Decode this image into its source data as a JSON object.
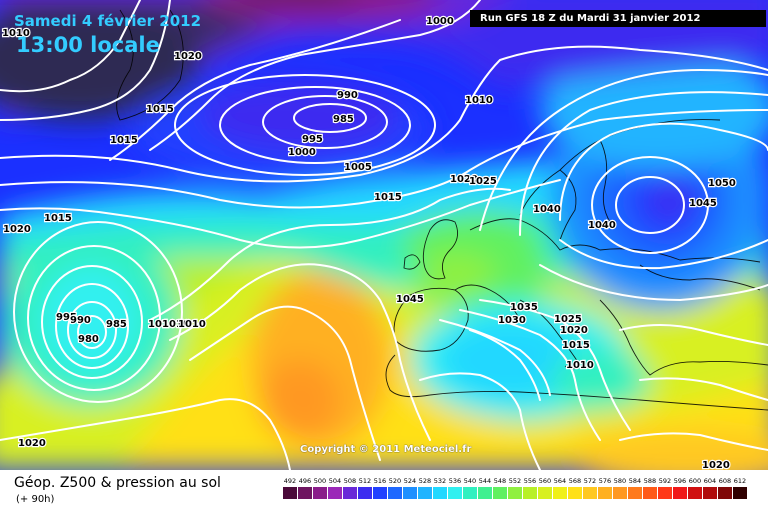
{
  "map": {
    "date_title": "Samedi 4 février 2012",
    "time_title": "13:00 locale",
    "run_label": "Run GFS 18 Z du Mardi 31 janvier 2012",
    "copyright": "Copyright © 2011 Meteociel.fr",
    "parameter_label": "Géop. Z500 & pression au sol",
    "lead_time_label": "(+ 90h)",
    "isobar_labels": [
      {
        "text": "1010",
        "pos": "top-left edge"
      },
      {
        "text": "1000",
        "pos": "top center"
      },
      {
        "text": "1020",
        "pos": "top left"
      },
      {
        "text": "990",
        "pos": "north atlantic low"
      },
      {
        "text": "985",
        "pos": "north atlantic low center"
      },
      {
        "text": "995",
        "pos": "north atlantic low"
      },
      {
        "text": "1000",
        "pos": "north atlantic low"
      },
      {
        "text": "1015",
        "pos": "greenland"
      },
      {
        "text": "1015",
        "pos": "left edge"
      },
      {
        "text": "1010",
        "pos": "north of scandinavia"
      },
      {
        "text": "1005",
        "pos": "north atlantic"
      },
      {
        "text": "1015",
        "pos": "north atlantic"
      },
      {
        "text": "1020",
        "pos": "north sea"
      },
      {
        "text": "1025",
        "pos": "north sea"
      },
      {
        "text": "1040",
        "pos": "scandinavia"
      },
      {
        "text": "1040",
        "pos": "baltic"
      },
      {
        "text": "1045",
        "pos": "russia"
      },
      {
        "text": "1050",
        "pos": "russia"
      },
      {
        "text": "1015",
        "pos": "west atlantic"
      },
      {
        "text": "1020",
        "pos": "west edge"
      },
      {
        "text": "995",
        "pos": "atlantic low"
      },
      {
        "text": "990",
        "pos": "atlantic low"
      },
      {
        "text": "985",
        "pos": "atlantic low"
      },
      {
        "text": "980",
        "pos": "atlantic low center"
      },
      {
        "text": "1010",
        "pos": "atlantic"
      },
      {
        "text": "1010",
        "pos": "atlantic"
      },
      {
        "text": "1010",
        "pos": "atlantic"
      },
      {
        "text": "1045",
        "pos": "france"
      },
      {
        "text": "1035",
        "pos": "alps"
      },
      {
        "text": "1030",
        "pos": "alps"
      },
      {
        "text": "1025",
        "pos": "italy"
      },
      {
        "text": "1020",
        "pos": "italy"
      },
      {
        "text": "1015",
        "pos": "italy"
      },
      {
        "text": "1010",
        "pos": "south italy"
      },
      {
        "text": "1020",
        "pos": "bottom left"
      },
      {
        "text": "1020",
        "pos": "bottom right"
      }
    ]
  },
  "legend": {
    "values": [
      "492",
      "496",
      "500",
      "504",
      "508",
      "512",
      "516",
      "520",
      "524",
      "528",
      "532",
      "536",
      "540",
      "544",
      "548",
      "552",
      "556",
      "560",
      "564",
      "568",
      "572",
      "576",
      "580",
      "584",
      "588",
      "592",
      "596",
      "600",
      "604",
      "608",
      "612"
    ],
    "colors": [
      "#4b0a3a",
      "#6e1560",
      "#8a1c8a",
      "#9b28b8",
      "#6a28d8",
      "#3c2cf0",
      "#2040ff",
      "#1e68ff",
      "#1e90ff",
      "#20b4ff",
      "#20d8ff",
      "#30f0f0",
      "#30f0c0",
      "#40f090",
      "#60f060",
      "#90f040",
      "#b8f028",
      "#d8f020",
      "#f0f018",
      "#ffe018",
      "#ffc820",
      "#ffb020",
      "#ff9820",
      "#ff7a1c",
      "#ff5a18",
      "#ff3818",
      "#f01818",
      "#d01010",
      "#b00c0c",
      "#800808",
      "#300000"
    ]
  }
}
